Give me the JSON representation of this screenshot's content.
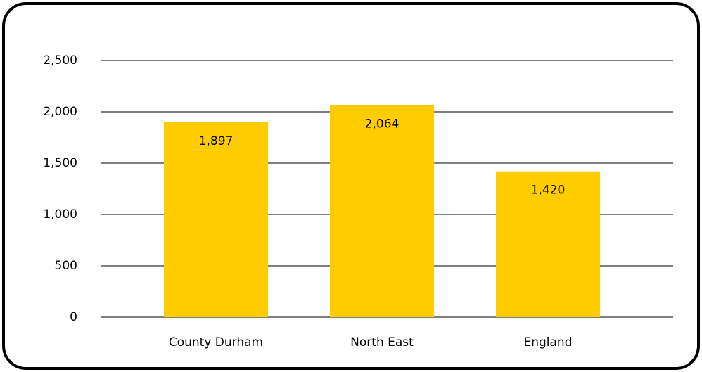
{
  "chart_data": {
    "type": "bar",
    "categories": [
      "County Durham",
      "North East",
      "England"
    ],
    "values": [
      1897,
      2064,
      1420
    ],
    "value_labels": [
      "1,897",
      "2,064",
      "1,420"
    ],
    "color": "#ffcc00",
    "ylim": [
      0,
      2500
    ],
    "yticks": [
      0,
      500,
      {
        "value": 1000,
        "label": "1,000"
      },
      {
        "value": 1500,
        "label": "1,500"
      },
      {
        "value": 2000,
        "label": "2,000"
      },
      {
        "value": 2500,
        "label": "2,500"
      }
    ],
    "grid": true
  }
}
